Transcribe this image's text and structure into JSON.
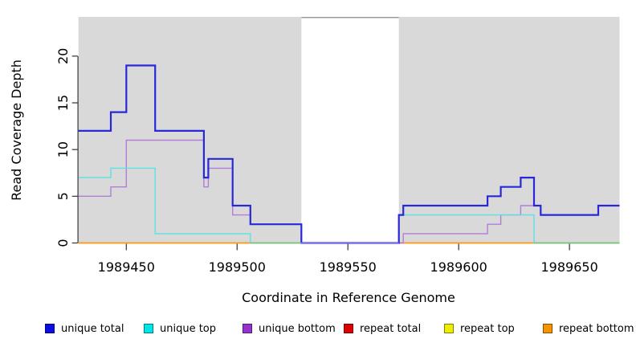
{
  "chart_data": {
    "type": "line",
    "subtype": "step-coverage-plot",
    "title": "",
    "xlabel": "Coordinate in Reference Genome",
    "ylabel": "Read Coverage Depth",
    "xlim": [
      1989428.4,
      1989672.6
    ],
    "ylim": [
      0,
      24.2
    ],
    "grid": false,
    "panel_bg": "#d9d9d9",
    "axis_color": "#333333",
    "text_color": "#000000",
    "x_ticks": [
      {
        "value": 1989450,
        "label": "1989450"
      },
      {
        "value": 1989500,
        "label": "1989500"
      },
      {
        "value": 1989550,
        "label": "1989550"
      },
      {
        "value": 1989600,
        "label": "1989600"
      },
      {
        "value": 1989650,
        "label": "1989650"
      }
    ],
    "y_ticks": [
      {
        "value": 0,
        "label": "0"
      },
      {
        "value": 5,
        "label": "5"
      },
      {
        "value": 10,
        "label": "10"
      },
      {
        "value": 15,
        "label": "15"
      },
      {
        "value": 20,
        "label": "20"
      }
    ],
    "gap_region": {
      "x_start": 1989529,
      "x_end": 1989573,
      "fill": "#ffffff",
      "top_border": "#9a9a9a"
    },
    "series": [
      {
        "name": "repeat total",
        "color": "#cc2222",
        "width": 1.2,
        "steps": [
          [
            1989428.4,
            0
          ]
        ]
      },
      {
        "name": "repeat top",
        "color": "#e8e800",
        "width": 1.2,
        "steps": [
          [
            1989428.4,
            0
          ]
        ]
      },
      {
        "name": "repeat bottom",
        "color": "#ff9a1c",
        "width": 1.8,
        "steps": [
          [
            1989428.4,
            0
          ]
        ]
      },
      {
        "name": "unique bottom",
        "color": "#b47cd8",
        "width": 1.4,
        "steps": [
          [
            1989428.4,
            5
          ],
          [
            1989443,
            6
          ],
          [
            1989450,
            11
          ],
          [
            1989485,
            6
          ],
          [
            1989487,
            8
          ],
          [
            1989498,
            3
          ],
          [
            1989506,
            2
          ],
          [
            1989529,
            0
          ],
          [
            1989575,
            1
          ],
          [
            1989613,
            2
          ],
          [
            1989619,
            3
          ],
          [
            1989628,
            4
          ],
          [
            1989637,
            3
          ],
          [
            1989663,
            4
          ]
        ]
      },
      {
        "name": "unique top",
        "color": "#5ce2e2",
        "width": 1.4,
        "steps": [
          [
            1989428.4,
            7
          ],
          [
            1989443,
            8
          ],
          [
            1989463,
            1
          ],
          [
            1989506,
            0
          ],
          [
            1989573,
            3
          ],
          [
            1989634,
            0
          ]
        ]
      },
      {
        "name": "unique total",
        "color": "#2828d8",
        "width": 2.2,
        "steps": [
          [
            1989428.4,
            12
          ],
          [
            1989443,
            14
          ],
          [
            1989450,
            19
          ],
          [
            1989463,
            12
          ],
          [
            1989485,
            7
          ],
          [
            1989487,
            9
          ],
          [
            1989498,
            4
          ],
          [
            1989506,
            2
          ],
          [
            1989529,
            0
          ],
          [
            1989573,
            3
          ],
          [
            1989575,
            4
          ],
          [
            1989613,
            5
          ],
          [
            1989619,
            6
          ],
          [
            1989628,
            7
          ],
          [
            1989634,
            4
          ],
          [
            1989637,
            3
          ],
          [
            1989663,
            4
          ]
        ]
      }
    ],
    "baseline_overlays": [
      {
        "name": "zero-line-green-left",
        "x_start": 1989506,
        "x_end": 1989529,
        "color": "#76c47f",
        "width": 1.6
      },
      {
        "name": "zero-line-violet-gap",
        "x_start": 1989529,
        "x_end": 1989573,
        "color": "#8577ea",
        "width": 1.6
      },
      {
        "name": "zero-line-green-right",
        "x_start": 1989634,
        "x_end": 1989672.6,
        "color": "#76c47f",
        "width": 1.6
      }
    ],
    "legend": [
      {
        "label": "unique total",
        "color": "#0d0de0"
      },
      {
        "label": "unique top",
        "color": "#00e6e6"
      },
      {
        "label": "unique bottom",
        "color": "#9932cc"
      },
      {
        "label": "repeat total",
        "color": "#dd0000"
      },
      {
        "label": "repeat top",
        "color": "#eded00"
      },
      {
        "label": "repeat bottom",
        "color": "#f59300"
      }
    ]
  }
}
